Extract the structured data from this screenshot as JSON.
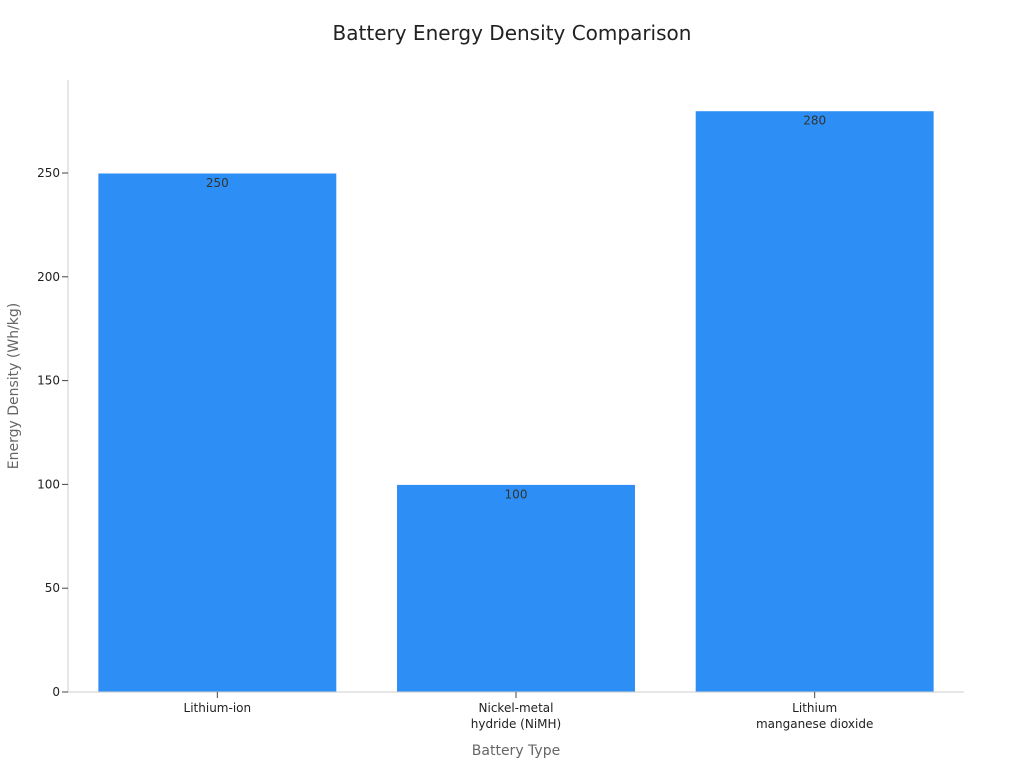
{
  "chart_data": {
    "type": "bar",
    "title": "Battery Energy Density Comparison",
    "xlabel": "Battery Type",
    "ylabel": "Energy Density (Wh/kg)",
    "categories": [
      [
        "Lithium-ion"
      ],
      [
        "Nickel-metal",
        "hydride (NiMH)"
      ],
      [
        "Lithium",
        "manganese dioxide"
      ]
    ],
    "values": [
      250,
      100,
      280
    ],
    "ylim": [
      0,
      290
    ],
    "yticks": [
      0,
      50,
      100,
      150,
      200,
      250
    ],
    "grid": false,
    "legend": "none",
    "bar_color": "#2d8ff5"
  }
}
